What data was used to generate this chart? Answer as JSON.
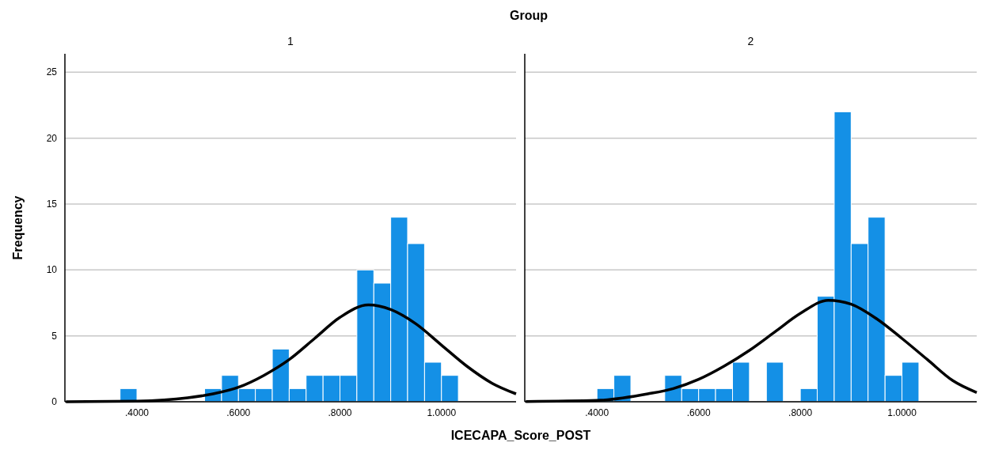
{
  "chart_data": [
    {
      "type": "histogram",
      "title": "1",
      "annotations": [
        "Group"
      ],
      "xlabel": "ICECAPA_Score_POST",
      "ylabel": "Frequency",
      "bins": [
        0.3667,
        0.4,
        0.4333,
        0.4667,
        0.5,
        0.5333,
        0.5667,
        0.6,
        0.6333,
        0.6667,
        0.7,
        0.7333,
        0.7667,
        0.8,
        0.8333,
        0.8667,
        0.9,
        0.9333,
        0.9667,
        1.0,
        1.0333
      ],
      "series": [
        {
          "color": "#1490e6",
          "values": [
            1,
            0,
            0,
            0,
            0,
            1,
            2,
            1,
            1,
            4,
            1,
            2,
            2,
            2,
            10,
            9,
            14,
            12,
            3,
            2
          ]
        },
        {
          "type": "line",
          "color": "#000000",
          "x": [
            0.26,
            0.4,
            0.5,
            0.55,
            0.6,
            0.65,
            0.7,
            0.75,
            0.8,
            0.856,
            0.9,
            0.95,
            1.0,
            1.05,
            1.1,
            1.147
          ],
          "values": [
            0,
            0.05,
            0.3,
            0.6,
            1.1,
            2.0,
            3.2,
            4.8,
            6.4,
            7.35,
            7.0,
            5.9,
            4.3,
            2.7,
            1.4,
            0.6
          ]
        }
      ],
      "xlim": [
        0.258,
        1.147
      ],
      "ylim": [
        0,
        26.4
      ],
      "xticks": [
        {
          "value": 0.4,
          "label": ".4000"
        },
        {
          "value": 0.6,
          "label": ".6000"
        },
        {
          "value": 0.8,
          "label": ".8000"
        },
        {
          "value": 1.0,
          "label": "1.0000"
        }
      ],
      "yticks": [
        0,
        5,
        10,
        15,
        20,
        25
      ],
      "grid": "y"
    },
    {
      "type": "histogram",
      "title": "2",
      "bins": [
        0.3667,
        0.4,
        0.4333,
        0.4667,
        0.5,
        0.5333,
        0.5667,
        0.6,
        0.6333,
        0.6667,
        0.7,
        0.7333,
        0.7667,
        0.8,
        0.8333,
        0.8667,
        0.9,
        0.9333,
        0.9667,
        1.0,
        1.0333
      ],
      "series": [
        {
          "color": "#1490e6",
          "values": [
            0,
            1,
            2,
            0,
            0,
            2,
            1,
            1,
            1,
            3,
            0,
            3,
            0,
            1,
            8,
            22,
            12,
            14,
            2,
            3
          ]
        },
        {
          "type": "line",
          "color": "#000000",
          "x": [
            0.26,
            0.4,
            0.5,
            0.55,
            0.6,
            0.65,
            0.7,
            0.75,
            0.8,
            0.855,
            0.9,
            0.95,
            1.0,
            1.05,
            1.1,
            1.147
          ],
          "values": [
            0.02,
            0.1,
            0.6,
            1.0,
            1.7,
            2.7,
            3.9,
            5.3,
            6.7,
            7.7,
            7.4,
            6.3,
            4.8,
            3.2,
            1.6,
            0.7
          ]
        }
      ],
      "xlim": [
        0.258,
        1.147
      ],
      "ylim": [
        0,
        26.4
      ],
      "xticks": [
        {
          "value": 0.4,
          "label": ".4000"
        },
        {
          "value": 0.6,
          "label": ".6000"
        },
        {
          "value": 0.8,
          "label": ".8000"
        },
        {
          "value": 1.0,
          "label": "1.0000"
        }
      ],
      "yticks": [
        0,
        5,
        10,
        15,
        20,
        25
      ],
      "grid": "y",
      "tick_labels": "x"
    }
  ]
}
